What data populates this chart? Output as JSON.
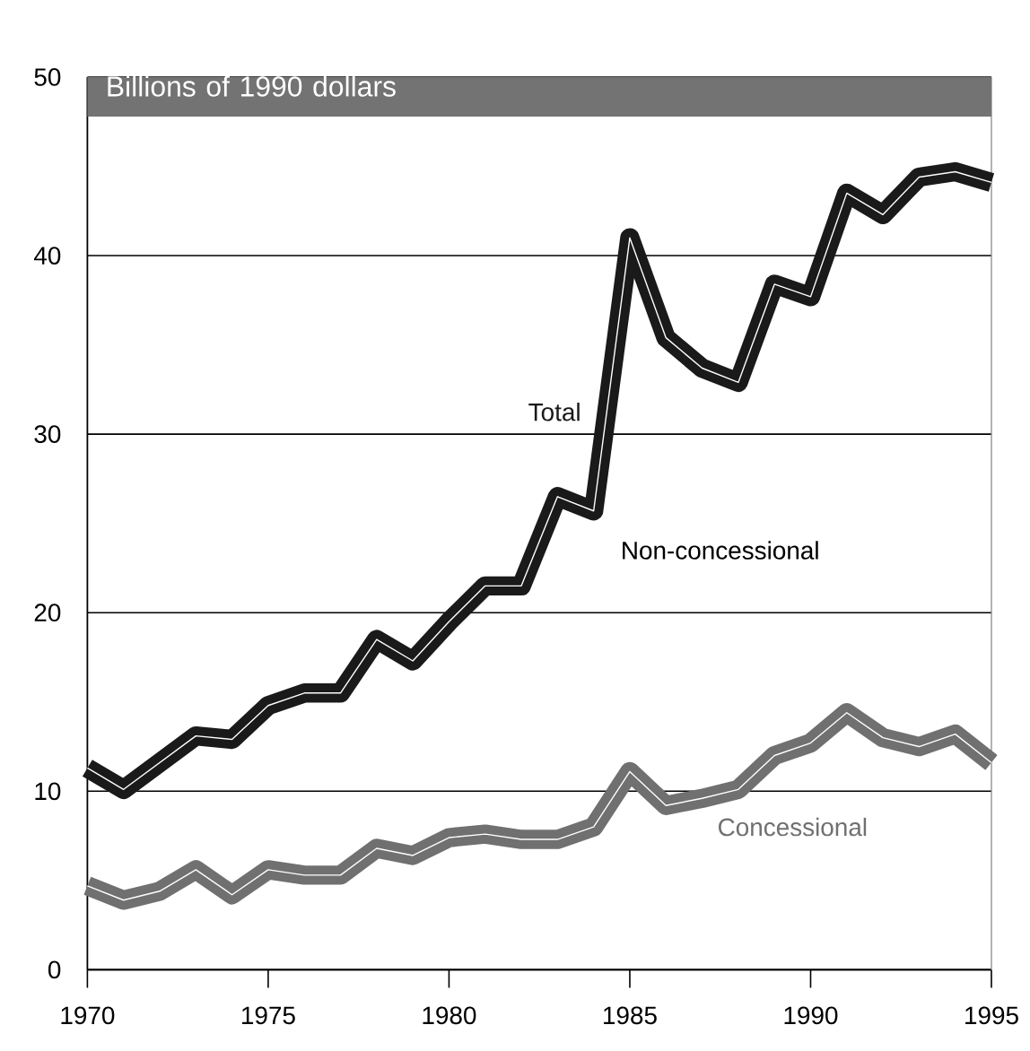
{
  "chart_data": {
    "type": "line",
    "title": "Billions of 1990 dollars",
    "x": [
      1970,
      1971,
      1972,
      1973,
      1974,
      1975,
      1976,
      1977,
      1978,
      1979,
      1980,
      1981,
      1982,
      1983,
      1984,
      1985,
      1986,
      1987,
      1988,
      1989,
      1990,
      1991,
      1992,
      1993,
      1994,
      1995
    ],
    "series": [
      {
        "name": "Total",
        "color": "#1a1a1a",
        "values": [
          11.3,
          10.1,
          11.6,
          13.1,
          12.9,
          14.8,
          15.5,
          15.5,
          18.5,
          17.3,
          19.5,
          21.5,
          21.5,
          26.5,
          25.7,
          41.0,
          35.4,
          33.7,
          32.9,
          38.4,
          37.7,
          43.5,
          42.3,
          44.4,
          44.7,
          44.1
        ]
      },
      {
        "name": "Concessional",
        "color": "#707070",
        "values": [
          4.7,
          3.9,
          4.4,
          5.6,
          4.2,
          5.6,
          5.3,
          5.3,
          6.8,
          6.4,
          7.4,
          7.6,
          7.3,
          7.3,
          8.0,
          11.1,
          9.2,
          9.6,
          10.1,
          12.0,
          12.7,
          14.4,
          13.0,
          12.5,
          13.2,
          11.6
        ]
      }
    ],
    "annotations": [
      "Non-concessional"
    ],
    "xlim": [
      1970,
      1995
    ],
    "xticks": [
      1970,
      1975,
      1980,
      1985,
      1990,
      1995
    ],
    "ylim": [
      0,
      50
    ],
    "yticks": [
      0,
      10,
      20,
      30,
      40,
      50
    ],
    "grid": "y"
  }
}
